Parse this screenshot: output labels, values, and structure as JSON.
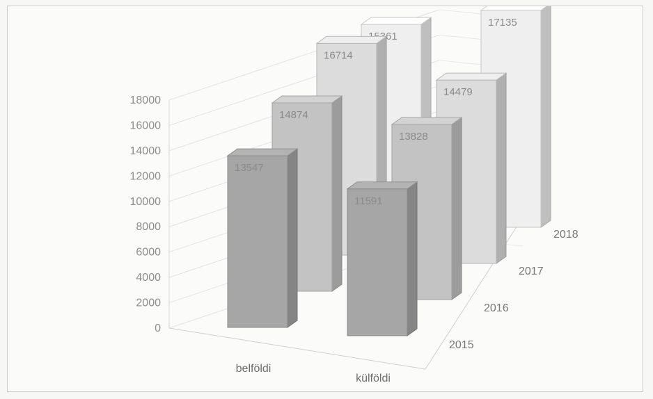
{
  "chart_data": {
    "type": "bar",
    "subtype": "3d-column",
    "title": "",
    "categories": [
      "belföldi",
      "külföldi"
    ],
    "series": [
      {
        "name": "2015",
        "values": [
          13547,
          11591
        ],
        "color": "#a6a6a6"
      },
      {
        "name": "2016",
        "values": [
          14874,
          13828
        ],
        "color": "#c3c3c3"
      },
      {
        "name": "2017",
        "values": [
          16714,
          14479
        ],
        "color": "#dcdcdc"
      },
      {
        "name": "2018",
        "values": [
          15361,
          17135
        ],
        "color": "#efefef"
      }
    ],
    "y_ticks": [
      0,
      2000,
      4000,
      6000,
      8000,
      10000,
      12000,
      14000,
      16000,
      18000
    ],
    "ylim": [
      0,
      18000
    ],
    "grid": true,
    "legend": "none",
    "data_labels": true
  }
}
